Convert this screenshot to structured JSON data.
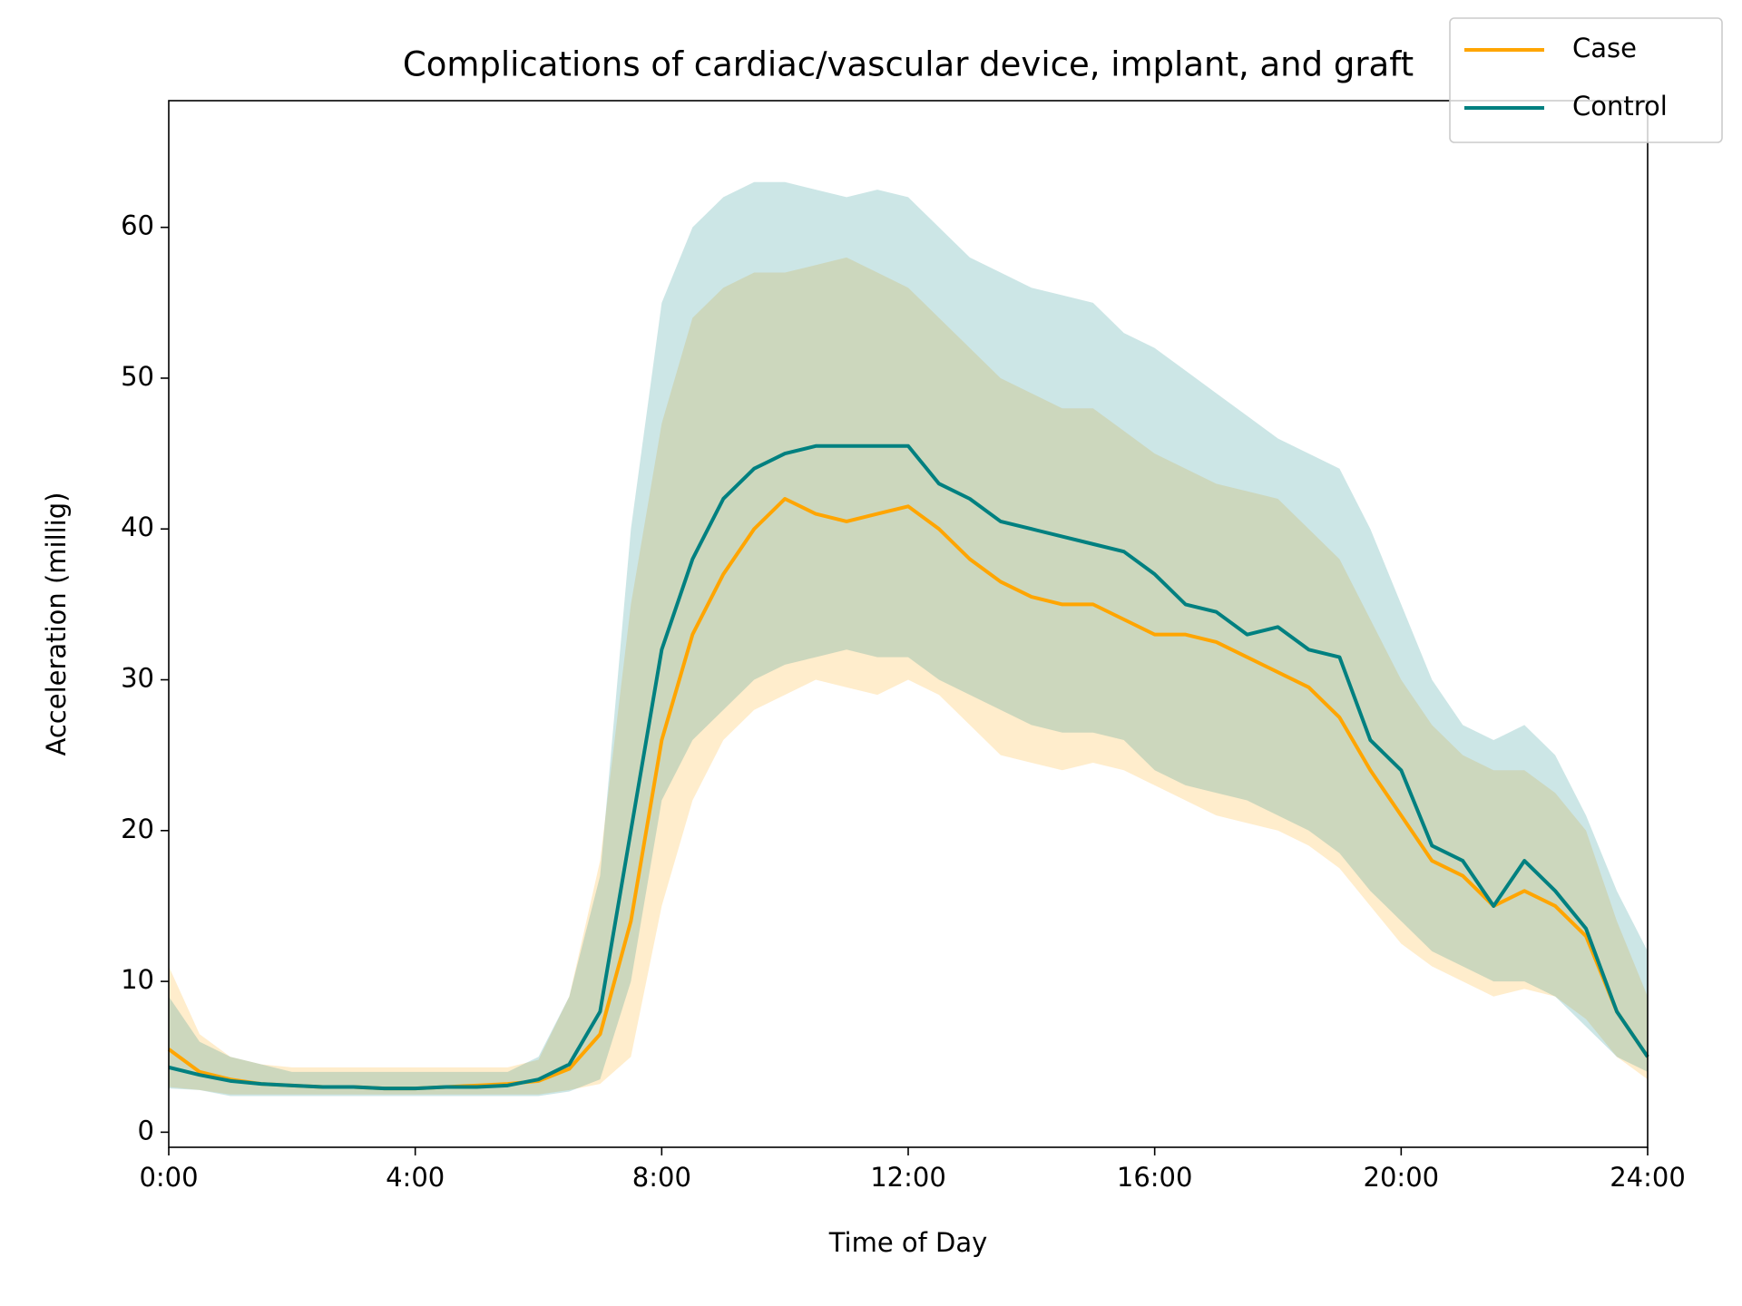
{
  "chart_data": {
    "type": "line",
    "title": "Complications of cardiac/vascular device, implant, and graft",
    "x_label": "Time of Day",
    "y_label": "Acceleration (millig)",
    "x": [
      0,
      0.5,
      1,
      1.5,
      2,
      2.5,
      3,
      3.5,
      4,
      4.5,
      5,
      5.5,
      6,
      6.5,
      7,
      7.5,
      8,
      8.5,
      9,
      9.5,
      10,
      10.5,
      11,
      11.5,
      12,
      12.5,
      13,
      13.5,
      14,
      14.5,
      15,
      15.5,
      16,
      16.5,
      17,
      17.5,
      18,
      18.5,
      19,
      19.5,
      20,
      20.5,
      21,
      21.5,
      22,
      22.5,
      23,
      23.5,
      24
    ],
    "series": [
      {
        "name": "Case",
        "color": "#ffa500",
        "values": [
          5.5,
          4,
          3.5,
          3.2,
          3.1,
          3.0,
          3.0,
          2.9,
          2.9,
          3.0,
          3.1,
          3.2,
          3.4,
          4.2,
          6.5,
          14,
          26,
          33,
          37,
          40,
          42,
          41,
          40.5,
          41,
          41.5,
          40,
          38,
          36.5,
          35.5,
          35,
          35,
          34,
          33,
          33,
          32.5,
          31.5,
          30.5,
          29.5,
          27.5,
          24,
          21,
          18,
          17,
          15,
          16,
          15,
          13,
          8,
          5
        ],
        "lower": [
          3.0,
          2.8,
          2.5,
          2.5,
          2.5,
          2.5,
          2.5,
          2.5,
          2.5,
          2.5,
          2.5,
          2.5,
          2.5,
          2.8,
          3.2,
          5,
          15,
          22,
          26,
          28,
          29,
          30,
          29.5,
          29,
          30,
          29,
          27,
          25,
          24.5,
          24,
          24.5,
          24,
          23,
          22,
          21,
          20.5,
          20,
          19,
          17.5,
          15,
          12.5,
          11,
          10,
          9,
          9.5,
          9,
          7.5,
          5,
          3.5
        ],
        "upper": [
          11,
          6.5,
          5,
          4.5,
          4.3,
          4.3,
          4.3,
          4.3,
          4.3,
          4.3,
          4.3,
          4.3,
          4.8,
          9,
          18,
          35,
          47,
          54,
          56,
          57,
          57,
          57.5,
          58,
          57,
          56,
          54,
          52,
          50,
          49,
          48,
          48,
          46.5,
          45,
          44,
          43,
          42.5,
          42,
          40,
          38,
          34,
          30,
          27,
          25,
          24,
          24,
          22.5,
          20,
          14,
          9
        ]
      },
      {
        "name": "Control",
        "color": "#008080",
        "values": [
          4.3,
          3.8,
          3.4,
          3.2,
          3.1,
          3.0,
          3.0,
          2.9,
          2.9,
          3.0,
          3.0,
          3.1,
          3.5,
          4.5,
          8,
          20,
          32,
          38,
          42,
          44,
          45,
          45.5,
          45.5,
          45.5,
          45.5,
          43,
          42,
          40.5,
          40,
          39.5,
          39,
          38.5,
          37,
          35,
          34.5,
          33,
          33.5,
          32,
          31.5,
          26,
          24,
          19,
          18,
          15,
          18,
          16,
          13.5,
          8,
          5
        ],
        "lower": [
          2.9,
          2.8,
          2.4,
          2.4,
          2.4,
          2.4,
          2.4,
          2.4,
          2.4,
          2.4,
          2.4,
          2.4,
          2.4,
          2.7,
          3.5,
          10,
          22,
          26,
          28,
          30,
          31,
          31.5,
          32,
          31.5,
          31.5,
          30,
          29,
          28,
          27,
          26.5,
          26.5,
          26,
          24,
          23,
          22.5,
          22,
          21,
          20,
          18.5,
          16,
          14,
          12,
          11,
          10,
          10,
          9,
          7,
          5,
          4
        ],
        "upper": [
          9,
          6,
          5,
          4.5,
          4,
          4,
          4,
          4,
          4,
          4,
          4,
          4,
          5,
          9,
          17,
          40,
          55,
          60,
          62,
          63,
          63,
          62.5,
          62,
          62.5,
          62,
          60,
          58,
          57,
          56,
          55.5,
          55,
          53,
          52,
          50.5,
          49,
          47.5,
          46,
          45,
          44,
          40,
          35,
          30,
          27,
          26,
          27,
          25,
          21,
          16,
          12
        ]
      }
    ],
    "xlim": [
      0,
      24
    ],
    "xticks": [
      {
        "value": 0,
        "label": "0:00"
      },
      {
        "value": 4,
        "label": "4:00"
      },
      {
        "value": 8,
        "label": "8:00"
      },
      {
        "value": 12,
        "label": "12:00"
      },
      {
        "value": 16,
        "label": "16:00"
      },
      {
        "value": 20,
        "label": "20:00"
      },
      {
        "value": 24,
        "label": "24:00"
      }
    ],
    "ylim": [
      -1.0,
      68.4
    ],
    "yticks": [
      0,
      10,
      20,
      30,
      40,
      50,
      60
    ],
    "legend": "upper right",
    "grid": false
  }
}
